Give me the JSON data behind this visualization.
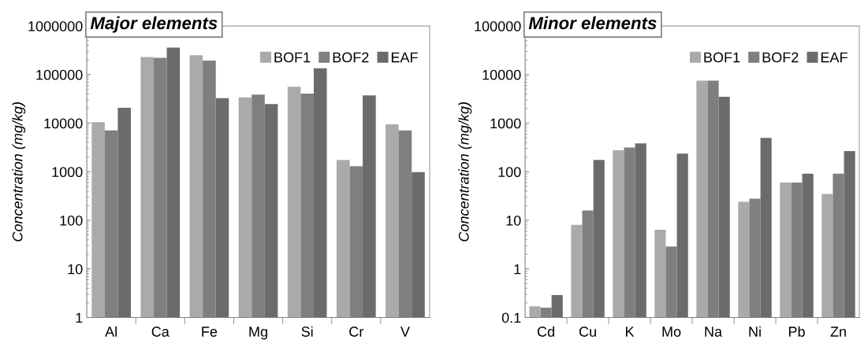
{
  "chart_data": [
    {
      "type": "bar",
      "title": "Major elements",
      "ylabel": "Concentration (mg/kg)",
      "log": "y",
      "legend": "top right",
      "grid": false,
      "categories": [
        "Al",
        "Ca",
        "Fe",
        "Mg",
        "Si",
        "Cr",
        "V"
      ],
      "ylim": [
        1,
        1000000
      ],
      "yticks": [
        1,
        10,
        100,
        1000,
        10000,
        100000,
        1000000
      ],
      "series": [
        {
          "name": "BOF1",
          "color": "#aaaaaa",
          "values": [
            10500,
            230000,
            250000,
            34000,
            56000,
            1750,
            9500
          ]
        },
        {
          "name": "BOF2",
          "color": "#7f7f7f",
          "values": [
            7100,
            221000,
            194000,
            38700,
            40700,
            1300,
            7100
          ]
        },
        {
          "name": "EAF",
          "color": "#6b6b6b",
          "values": [
            20700,
            360000,
            32700,
            24800,
            135000,
            37200,
            980
          ]
        }
      ]
    },
    {
      "type": "bar",
      "title": "Minor elements",
      "ylabel": "Concentration (mg/kg)",
      "log": "y",
      "legend": "top right",
      "grid": false,
      "categories": [
        "Cd",
        "Cu",
        "K",
        "Mo",
        "Na",
        "Ni",
        "Pb",
        "Zn"
      ],
      "ylim": [
        0.1,
        100000
      ],
      "yticks": [
        0.1,
        1,
        10,
        100,
        1000,
        10000,
        100000
      ],
      "series": [
        {
          "name": "BOF1",
          "color": "#aaaaaa",
          "values": [
            0.17,
            8.1,
            277,
            6.4,
            7500,
            24,
            60,
            35
          ]
        },
        {
          "name": "BOF2",
          "color": "#7f7f7f",
          "values": [
            0.16,
            16,
            316,
            2.9,
            7500,
            28,
            60,
            91
          ]
        },
        {
          "name": "EAF",
          "color": "#6b6b6b",
          "values": [
            0.29,
            175,
            385,
            237,
            3500,
            500,
            91,
            267
          ]
        }
      ]
    }
  ]
}
